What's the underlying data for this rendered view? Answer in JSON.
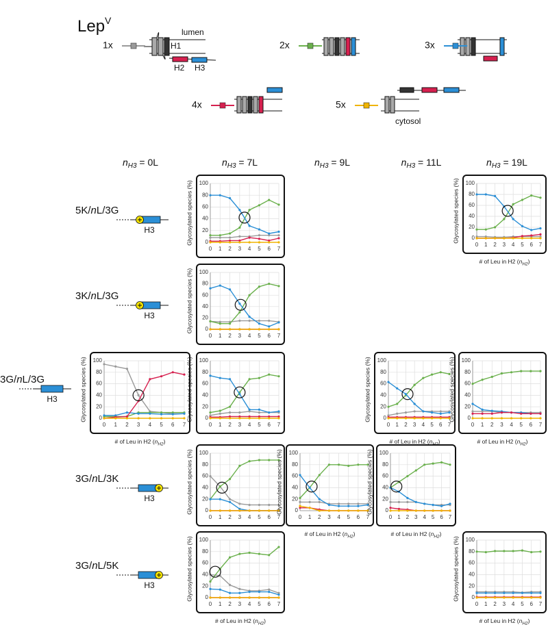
{
  "header": {
    "title": "Lep",
    "superscript": "V"
  },
  "topology_labels": {
    "lumen": "lumen",
    "cytosol": "cytosol",
    "h1": "H1",
    "h2": "H2",
    "h3": "H3"
  },
  "series_styles": [
    {
      "name": "1x",
      "color": "#9a9a9a"
    },
    {
      "name": "2x",
      "color": "#6ab04c"
    },
    {
      "name": "3x",
      "color": "#2b8fd6"
    },
    {
      "name": "4x",
      "color": "#d6204f"
    },
    {
      "name": "5x",
      "color": "#f0b400"
    }
  ],
  "columns": [
    {
      "var": "n",
      "sub": "H3",
      "text": " = 0L"
    },
    {
      "var": "n",
      "sub": "H3",
      "text": " = 7L"
    },
    {
      "var": "n",
      "sub": "H3",
      "text": " = 9L"
    },
    {
      "var": "n",
      "sub": "H3",
      "text": " = 11L"
    },
    {
      "var": "n",
      "sub": "H3",
      "text": " = 19L"
    }
  ],
  "rows": [
    {
      "pre": "5K/",
      "var": "n",
      "post": "L/3G",
      "helix": "H3"
    },
    {
      "pre": "3K/",
      "var": "n",
      "post": "L/3G",
      "helix": "H3"
    },
    {
      "pre": "3G/",
      "var": "n",
      "post": "L/3G",
      "helix": "H3"
    },
    {
      "pre": "3G/",
      "var": "n",
      "post": "L/3K",
      "helix": "H3"
    },
    {
      "pre": "3G/",
      "var": "n",
      "post": "L/5K",
      "helix": "H3"
    }
  ],
  "chart_data": [
    {
      "type": "line",
      "ylabel": "Glycosylated species  (%)",
      "x": [
        0,
        1,
        2,
        3,
        4,
        5,
        6,
        7
      ],
      "ylim": [
        0,
        100
      ],
      "yticks": [
        0,
        20,
        40,
        60,
        80,
        100
      ],
      "grid": true,
      "highlight": [
        3.5,
        42
      ],
      "series": [
        {
          "values": [
            8,
            8,
            8,
            10,
            10,
            12,
            12,
            12
          ]
        },
        {
          "values": [
            12,
            12,
            15,
            25,
            55,
            63,
            72,
            64
          ]
        },
        {
          "values": [
            80,
            80,
            75,
            55,
            28,
            22,
            15,
            18
          ]
        },
        {
          "values": [
            2,
            2,
            3,
            3,
            8,
            6,
            3,
            7
          ]
        },
        {
          "values": [
            0,
            0,
            0,
            0,
            0,
            0,
            0,
            0
          ]
        }
      ]
    },
    {
      "type": "line",
      "ylabel": "Glycosylated species  (%)",
      "x": [
        0,
        1,
        2,
        3,
        4,
        5,
        6,
        7
      ],
      "ylim": [
        0,
        100
      ],
      "yticks": [
        0,
        20,
        40,
        60,
        80,
        100
      ],
      "grid": true,
      "highlight": [
        3.4,
        50
      ],
      "xlabel": {
        "main": "# of Leu in H2 (",
        "var": "n",
        "sub": "H2",
        "end": ")"
      },
      "series": [
        {
          "values": [
            3,
            3,
            2,
            2,
            3,
            3,
            3,
            3
          ]
        },
        {
          "values": [
            16,
            16,
            20,
            35,
            62,
            70,
            78,
            74
          ]
        },
        {
          "values": [
            80,
            80,
            77,
            58,
            35,
            22,
            15,
            18
          ]
        },
        {
          "values": [
            0,
            0,
            0,
            0,
            1,
            4,
            5,
            7
          ]
        },
        {
          "values": [
            0,
            0,
            0,
            0,
            0,
            0,
            0,
            0
          ]
        }
      ]
    },
    {
      "type": "line",
      "ylabel": "Glycosylated species  (%)",
      "x": [
        0,
        1,
        2,
        3,
        4,
        5,
        6,
        7
      ],
      "ylim": [
        0,
        100
      ],
      "yticks": [
        0,
        20,
        40,
        60,
        80,
        100
      ],
      "grid": true,
      "highlight": [
        3.1,
        43
      ],
      "series": [
        {
          "values": [
            14,
            13,
            13,
            15,
            15,
            15,
            15,
            13
          ]
        },
        {
          "values": [
            14,
            10,
            10,
            30,
            60,
            75,
            80,
            76
          ]
        },
        {
          "values": [
            72,
            77,
            70,
            45,
            22,
            10,
            5,
            12
          ]
        },
        {
          "values": [
            0,
            0,
            0,
            0,
            0,
            0,
            0,
            0
          ]
        },
        {
          "values": [
            0,
            0,
            0,
            0,
            0,
            0,
            0,
            0
          ]
        }
      ]
    },
    {
      "type": "line",
      "ylabel": "Glycosylated species  (%)",
      "x": [
        0,
        1,
        2,
        3,
        4,
        5,
        6,
        7
      ],
      "ylim": [
        0,
        100
      ],
      "yticks": [
        0,
        20,
        40,
        60,
        80,
        100
      ],
      "grid": true,
      "highlight": [
        3,
        40
      ],
      "xlabel": {
        "main": "# of Leu in H2 (",
        "var": "n",
        "sub": "H2",
        "end": ")"
      },
      "series": [
        {
          "values": [
            94,
            90,
            86,
            40,
            12,
            10,
            8,
            8
          ]
        },
        {
          "values": [
            3,
            3,
            3,
            10,
            10,
            10,
            10,
            10
          ]
        },
        {
          "values": [
            5,
            5,
            10,
            8,
            8,
            7,
            7,
            8
          ]
        },
        {
          "values": [
            0,
            2,
            3,
            30,
            68,
            73,
            80,
            76
          ]
        },
        {
          "values": [
            0,
            0,
            0,
            0,
            0,
            0,
            0,
            0
          ]
        }
      ]
    },
    {
      "type": "line",
      "ylabel": "Glycosylated species  (%)",
      "x": [
        0,
        1,
        2,
        3,
        4,
        5,
        6,
        7
      ],
      "ylim": [
        0,
        100
      ],
      "yticks": [
        0,
        20,
        40,
        60,
        80,
        100
      ],
      "grid": true,
      "highlight": [
        3,
        45
      ],
      "series": [
        {
          "values": [
            5,
            8,
            10,
            10,
            12,
            10,
            10,
            10
          ]
        },
        {
          "values": [
            10,
            13,
            20,
            45,
            68,
            70,
            76,
            73
          ]
        },
        {
          "values": [
            74,
            70,
            68,
            42,
            15,
            15,
            10,
            12
          ]
        },
        {
          "values": [
            2,
            2,
            3,
            3,
            3,
            3,
            3,
            3
          ]
        },
        {
          "values": [
            0,
            0,
            0,
            0,
            0,
            0,
            0,
            0
          ]
        }
      ]
    },
    {
      "type": "line",
      "ylabel": "Glycosylated species  (%)",
      "x": [
        0,
        1,
        2,
        3,
        4,
        5,
        6,
        7
      ],
      "ylim": [
        0,
        100
      ],
      "yticks": [
        0,
        20,
        40,
        60,
        80,
        100
      ],
      "grid": true,
      "highlight": [
        2.2,
        42
      ],
      "xlabel": {
        "main": "# of Leu in H2 (",
        "var": "n",
        "sub": "H2",
        "end": ")"
      },
      "series": [
        {
          "values": [
            5,
            8,
            10,
            12,
            12,
            12,
            12,
            12
          ]
        },
        {
          "values": [
            20,
            25,
            40,
            58,
            70,
            76,
            80,
            77
          ]
        },
        {
          "values": [
            63,
            52,
            42,
            25,
            12,
            10,
            8,
            10
          ]
        },
        {
          "values": [
            2,
            2,
            2,
            2,
            2,
            2,
            2,
            2
          ]
        },
        {
          "values": [
            0,
            0,
            0,
            0,
            0,
            0,
            0,
            0
          ]
        }
      ]
    },
    {
      "type": "line",
      "ylabel": "Glycosylated species  (%)",
      "x": [
        0,
        1,
        2,
        3,
        4,
        5,
        6,
        7
      ],
      "ylim": [
        0,
        100
      ],
      "yticks": [
        0,
        20,
        40,
        60,
        80,
        100
      ],
      "grid": true,
      "xlabel": {
        "main": "# of Leu in H2 (",
        "var": "n",
        "sub": "H2",
        "end": ")"
      },
      "series": [
        {
          "values": [
            12,
            12,
            12,
            10,
            10,
            10,
            10,
            10
          ]
        },
        {
          "values": [
            60,
            67,
            72,
            78,
            80,
            82,
            82,
            82
          ]
        },
        {
          "values": [
            25,
            15,
            13,
            12,
            10,
            10,
            8,
            8
          ]
        },
        {
          "values": [
            8,
            8,
            8,
            10,
            10,
            8,
            8,
            8
          ]
        },
        {
          "values": [
            0,
            0,
            0,
            0,
            0,
            0,
            0,
            0
          ]
        }
      ]
    },
    {
      "type": "line",
      "ylabel": "Glycosylated species  (%)",
      "x": [
        0,
        1,
        2,
        3,
        4,
        5,
        6,
        7
      ],
      "ylim": [
        0,
        100
      ],
      "yticks": [
        0,
        20,
        40,
        60,
        80,
        100
      ],
      "grid": true,
      "highlight": [
        1.2,
        40
      ],
      "series": [
        {
          "values": [
            60,
            42,
            20,
            12,
            10,
            10,
            10,
            10
          ]
        },
        {
          "values": [
            20,
            42,
            55,
            78,
            86,
            88,
            88,
            88
          ]
        },
        {
          "values": [
            20,
            20,
            15,
            3,
            0,
            0,
            0,
            0
          ]
        },
        {
          "values": [
            0,
            0,
            0,
            0,
            0,
            0,
            0,
            0
          ]
        },
        {
          "values": [
            0,
            0,
            0,
            0,
            0,
            0,
            0,
            0
          ]
        }
      ]
    },
    {
      "type": "line",
      "ylabel": "Glycosylated species  (%)",
      "x": [
        0,
        1,
        2,
        3,
        4,
        5,
        6,
        7
      ],
      "ylim": [
        0,
        100
      ],
      "yticks": [
        0,
        20,
        40,
        60,
        80,
        100
      ],
      "grid": true,
      "highlight": [
        1.2,
        42
      ],
      "xlabel": {
        "main": "# of Leu in H2 (",
        "var": "n",
        "sub": "H2",
        "end": ")"
      },
      "series": [
        {
          "values": [
            15,
            15,
            15,
            12,
            12,
            12,
            12,
            12
          ]
        },
        {
          "values": [
            22,
            40,
            62,
            80,
            80,
            78,
            80,
            80
          ]
        },
        {
          "values": [
            62,
            40,
            20,
            10,
            8,
            8,
            8,
            10
          ]
        },
        {
          "values": [
            5,
            5,
            2,
            0,
            0,
            0,
            0,
            0
          ]
        },
        {
          "values": [
            8,
            5,
            0,
            0,
            0,
            0,
            0,
            0
          ]
        }
      ]
    },
    {
      "type": "line",
      "ylabel": "Glycosylated species  (%)",
      "x": [
        0,
        1,
        2,
        3,
        4,
        5,
        6,
        7
      ],
      "ylim": [
        0,
        100
      ],
      "yticks": [
        0,
        20,
        40,
        60,
        80,
        100
      ],
      "grid": true,
      "highlight": [
        0.7,
        42
      ],
      "xlabel": {
        "main": "# of Leu in H2 (",
        "var": "n",
        "sub": "H2",
        "end": ")"
      },
      "series": [
        {
          "values": [
            15,
            15,
            15,
            15,
            12,
            10,
            10,
            10
          ]
        },
        {
          "values": [
            40,
            50,
            60,
            70,
            80,
            82,
            84,
            80
          ]
        },
        {
          "values": [
            40,
            33,
            22,
            15,
            12,
            10,
            8,
            12
          ]
        },
        {
          "values": [
            5,
            3,
            2,
            0,
            0,
            0,
            0,
            0
          ]
        },
        {
          "values": [
            0,
            0,
            0,
            0,
            0,
            0,
            0,
            0
          ]
        }
      ]
    },
    {
      "type": "line",
      "ylabel": "Glycosylated species  (%)",
      "x": [
        0,
        1,
        2,
        3,
        4,
        5,
        6,
        7
      ],
      "ylim": [
        0,
        100
      ],
      "yticks": [
        0,
        20,
        40,
        60,
        80,
        100
      ],
      "grid": true,
      "highlight": [
        0.5,
        45
      ],
      "xlabel": {
        "main": "# of Leu in H2 (",
        "var": "n",
        "sub": "H2",
        "end": ")"
      },
      "series": [
        {
          "values": [
            40,
            38,
            22,
            15,
            12,
            12,
            14,
            8
          ]
        },
        {
          "values": [
            28,
            50,
            70,
            76,
            78,
            76,
            74,
            88
          ]
        },
        {
          "values": [
            15,
            14,
            8,
            8,
            10,
            10,
            10,
            5
          ]
        },
        {
          "values": [
            0,
            0,
            0,
            0,
            0,
            0,
            0,
            0
          ]
        },
        {
          "values": [
            0,
            0,
            0,
            0,
            0,
            0,
            0,
            0
          ]
        }
      ]
    },
    {
      "type": "line",
      "ylabel": "Glycosylated species  (%)",
      "x": [
        0,
        1,
        2,
        3,
        4,
        5,
        6,
        7
      ],
      "ylim": [
        0,
        100
      ],
      "yticks": [
        0,
        20,
        40,
        60,
        80,
        100
      ],
      "grid": true,
      "xlabel": {
        "main": "# of Leu in H2 (",
        "var": "n",
        "sub": "H2",
        "end": ")"
      },
      "series": [
        {
          "values": [
            10,
            10,
            10,
            10,
            10,
            9,
            10,
            10
          ]
        },
        {
          "values": [
            80,
            79,
            81,
            81,
            81,
            82,
            79,
            80
          ]
        },
        {
          "values": [
            8,
            8,
            8,
            8,
            8,
            8,
            8,
            8
          ]
        },
        {
          "values": [
            1,
            1,
            1,
            1,
            1,
            1,
            1,
            1
          ]
        },
        {
          "values": [
            0,
            0,
            0,
            0,
            0,
            0,
            0,
            0
          ]
        }
      ]
    }
  ]
}
